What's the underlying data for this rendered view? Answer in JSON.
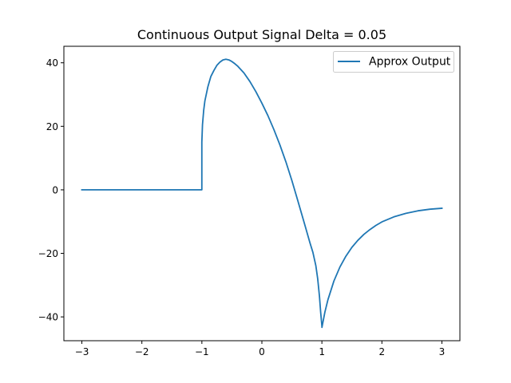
{
  "chart_data": {
    "type": "line",
    "title": "Continuous Output Signal Delta = 0.05",
    "xlabel": "",
    "ylabel": "",
    "xlim": [
      -3.3,
      3.3
    ],
    "ylim": [
      -47.5,
      45.2
    ],
    "grid": false,
    "legend_position": "upper right",
    "x_ticks": [
      -3,
      -2,
      -1,
      0,
      1,
      2,
      3
    ],
    "x_tick_labels": [
      "−3",
      "−2",
      "−1",
      "0",
      "1",
      "2",
      "3"
    ],
    "y_ticks": [
      -40,
      -20,
      0,
      20,
      40
    ],
    "y_tick_labels": [
      "−40",
      "−20",
      "0",
      "20",
      "40"
    ],
    "series": [
      {
        "name": "Approx Output",
        "color": "#1f77b4",
        "x": [
          -3.0,
          -2.0,
          -1.0,
          -1.0,
          -0.99,
          -0.97,
          -0.95,
          -0.9,
          -0.85,
          -0.8,
          -0.75,
          -0.7,
          -0.65,
          -0.6,
          -0.55,
          -0.5,
          -0.45,
          -0.4,
          -0.3,
          -0.2,
          -0.1,
          0.0,
          0.1,
          0.2,
          0.3,
          0.4,
          0.5,
          0.6,
          0.7,
          0.8,
          0.85,
          0.9,
          0.93,
          0.96,
          0.98,
          1.0,
          1.0,
          1.05,
          1.1,
          1.2,
          1.3,
          1.4,
          1.5,
          1.6,
          1.7,
          1.8,
          1.9,
          2.0,
          2.2,
          2.4,
          2.6,
          2.8,
          3.0
        ],
        "y": [
          0,
          0,
          0,
          15.0,
          20.5,
          25.0,
          28.0,
          32.5,
          35.7,
          37.6,
          39.2,
          40.2,
          40.9,
          41.1,
          40.9,
          40.4,
          39.7,
          38.9,
          36.8,
          34.1,
          30.9,
          27.3,
          23.4,
          19.0,
          14.2,
          8.8,
          2.9,
          -3.5,
          -10.0,
          -16.6,
          -19.7,
          -23.9,
          -28.0,
          -33.5,
          -38.5,
          -43.0,
          -43.3,
          -38.5,
          -34.6,
          -28.7,
          -24.3,
          -20.9,
          -18.1,
          -15.9,
          -14.0,
          -12.5,
          -11.2,
          -10.1,
          -8.5,
          -7.4,
          -6.6,
          -6.1,
          -5.8
        ]
      }
    ]
  }
}
